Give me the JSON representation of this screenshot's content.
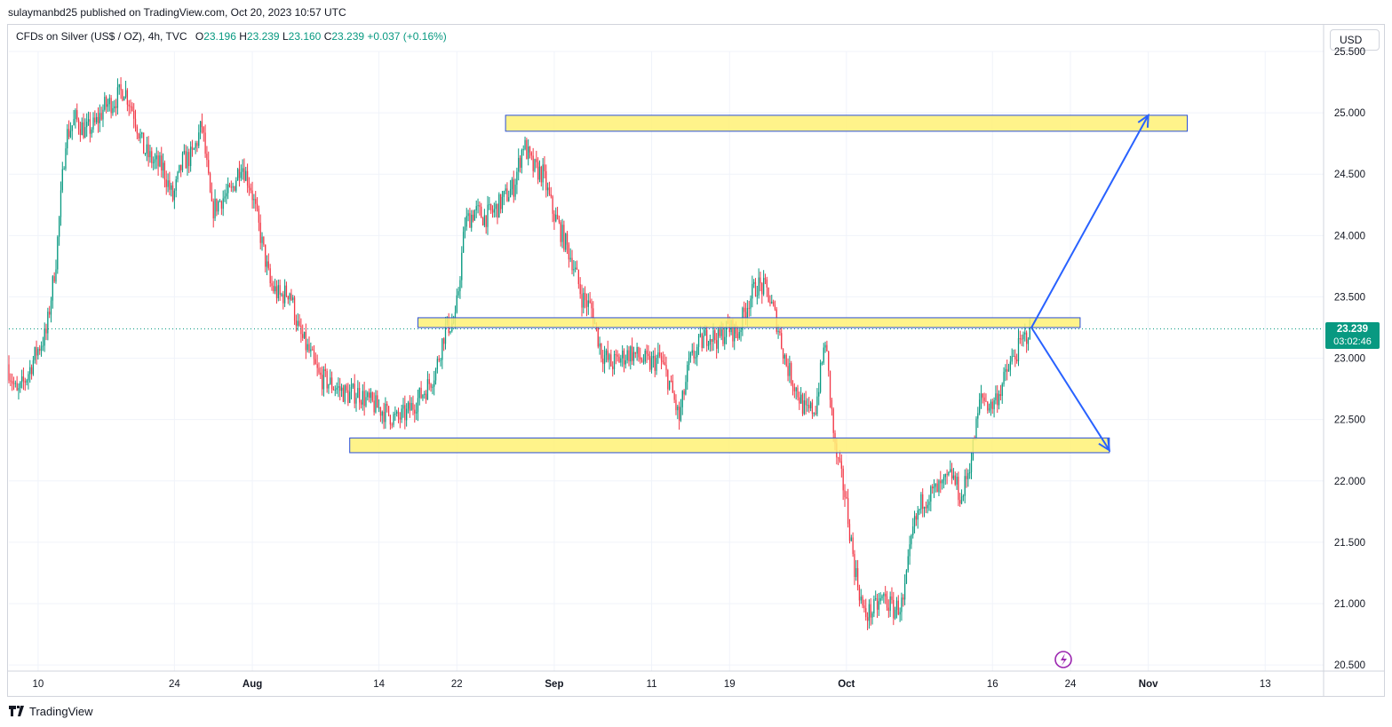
{
  "header": {
    "published_by": "sulaymanbd25 published on TradingView.com, Oct 20, 2023 10:57 UTC"
  },
  "legend": {
    "title": "CFDs on Silver (US$ / OZ), 4h, TVC",
    "open_label": "O",
    "open": "23.196",
    "high_label": "H",
    "high": "23.239",
    "low_label": "L",
    "low": "23.160",
    "close_label": "C",
    "close": "23.239",
    "change": "+0.037 (+0.16%)"
  },
  "currency_button": "USD",
  "price_tag": {
    "price": "23.239",
    "countdown": "03:02:46"
  },
  "footer": {
    "brand": "TradingView"
  },
  "colors": {
    "up": "#089981",
    "down": "#f23645",
    "zone_fill": "#fff176",
    "zone_border": "#2a4fd6",
    "arrow": "#2962ff",
    "grid": "#f0f3fa",
    "flash": "#9c27b0"
  },
  "chart_data": {
    "type": "candlestick",
    "timeframe": "4h",
    "y_axis": {
      "ylim": [
        20.45,
        25.5
      ],
      "ticks": [
        20.5,
        21.0,
        21.5,
        22.0,
        22.5,
        23.0,
        23.5,
        24.0,
        24.5,
        25.0,
        25.5
      ],
      "tick_labels": [
        "20.500",
        "21.000",
        "21.500",
        "22.000",
        "22.500",
        "23.000",
        "23.500",
        "24.000",
        "24.500",
        "25.000",
        "25.500"
      ]
    },
    "x_axis": {
      "tick_labels": [
        "10",
        "24",
        "Aug",
        "14",
        "22",
        "Sep",
        "11",
        "19",
        "Oct",
        "16",
        "24",
        "Nov",
        "13"
      ],
      "tick_dates": [
        "2023-07-10",
        "2023-07-24",
        "2023-08-01",
        "2023-08-14",
        "2023-08-22",
        "2023-09-01",
        "2023-09-11",
        "2023-09-19",
        "2023-10-01",
        "2023-10-16",
        "2023-10-24",
        "2023-11-01",
        "2023-11-13"
      ]
    },
    "closes_by_date": [
      [
        "2023-07-07",
        22.95
      ],
      [
        "2023-07-08",
        22.7
      ],
      [
        "2023-07-09",
        22.85
      ],
      [
        "2023-07-10",
        23.05
      ],
      [
        "2023-07-11",
        23.2
      ],
      [
        "2023-07-12",
        23.8
      ],
      [
        "2023-07-13",
        24.8
      ],
      [
        "2023-07-14",
        24.95
      ],
      [
        "2023-07-15",
        24.85
      ],
      [
        "2023-07-16",
        24.9
      ],
      [
        "2023-07-17",
        25.05
      ],
      [
        "2023-07-18",
        25.1
      ],
      [
        "2023-07-19",
        25.2
      ],
      [
        "2023-07-20",
        25.0
      ],
      [
        "2023-07-21",
        24.7
      ],
      [
        "2023-07-22",
        24.6
      ],
      [
        "2023-07-23",
        24.55
      ],
      [
        "2023-07-24",
        24.3
      ],
      [
        "2023-07-25",
        24.6
      ],
      [
        "2023-07-26",
        24.65
      ],
      [
        "2023-07-27",
        24.9
      ],
      [
        "2023-07-28",
        24.2
      ],
      [
        "2023-07-29",
        24.3
      ],
      [
        "2023-07-30",
        24.35
      ],
      [
        "2023-07-31",
        24.6
      ],
      [
        "2023-08-01",
        24.4
      ],
      [
        "2023-08-02",
        24.0
      ],
      [
        "2023-08-03",
        23.6
      ],
      [
        "2023-08-04",
        23.5
      ],
      [
        "2023-08-05",
        23.55
      ],
      [
        "2023-08-06",
        23.2
      ],
      [
        "2023-08-07",
        23.05
      ],
      [
        "2023-08-08",
        22.85
      ],
      [
        "2023-08-09",
        22.8
      ],
      [
        "2023-08-10",
        22.75
      ],
      [
        "2023-08-11",
        22.7
      ],
      [
        "2023-08-12",
        22.72
      ],
      [
        "2023-08-13",
        22.65
      ],
      [
        "2023-08-14",
        22.6
      ],
      [
        "2023-08-15",
        22.55
      ],
      [
        "2023-08-16",
        22.5
      ],
      [
        "2023-08-17",
        22.55
      ],
      [
        "2023-08-18",
        22.65
      ],
      [
        "2023-08-19",
        22.75
      ],
      [
        "2023-08-20",
        22.9
      ],
      [
        "2023-08-21",
        23.25
      ],
      [
        "2023-08-22",
        23.3
      ],
      [
        "2023-08-23",
        24.1
      ],
      [
        "2023-08-24",
        24.2
      ],
      [
        "2023-08-25",
        24.15
      ],
      [
        "2023-08-26",
        24.2
      ],
      [
        "2023-08-27",
        24.3
      ],
      [
        "2023-08-28",
        24.4
      ],
      [
        "2023-08-29",
        24.75
      ],
      [
        "2023-08-30",
        24.55
      ],
      [
        "2023-08-31",
        24.5
      ],
      [
        "2023-09-01",
        24.2
      ],
      [
        "2023-09-02",
        24.0
      ],
      [
        "2023-09-03",
        23.8
      ],
      [
        "2023-09-04",
        23.5
      ],
      [
        "2023-09-05",
        23.4
      ],
      [
        "2023-09-06",
        23.05
      ],
      [
        "2023-09-07",
        22.95
      ],
      [
        "2023-09-08",
        23.0
      ],
      [
        "2023-09-09",
        23.05
      ],
      [
        "2023-09-10",
        23.0
      ],
      [
        "2023-09-11",
        22.95
      ],
      [
        "2023-09-12",
        23.0
      ],
      [
        "2023-09-13",
        22.8
      ],
      [
        "2023-09-14",
        22.5
      ],
      [
        "2023-09-15",
        22.95
      ],
      [
        "2023-09-16",
        23.1
      ],
      [
        "2023-09-17",
        23.2
      ],
      [
        "2023-09-18",
        23.15
      ],
      [
        "2023-09-19",
        23.25
      ],
      [
        "2023-09-20",
        23.2
      ],
      [
        "2023-09-21",
        23.45
      ],
      [
        "2023-09-22",
        23.6
      ],
      [
        "2023-09-23",
        23.55
      ],
      [
        "2023-09-24",
        23.3
      ],
      [
        "2023-09-25",
        22.95
      ],
      [
        "2023-09-26",
        22.75
      ],
      [
        "2023-09-27",
        22.55
      ],
      [
        "2023-09-28",
        22.6
      ],
      [
        "2023-09-29",
        23.15
      ],
      [
        "2023-09-30",
        22.25
      ],
      [
        "2023-10-01",
        21.9
      ],
      [
        "2023-10-02",
        21.3
      ],
      [
        "2023-10-03",
        20.9
      ],
      [
        "2023-10-04",
        20.95
      ],
      [
        "2023-10-05",
        21.05
      ],
      [
        "2023-10-06",
        20.95
      ],
      [
        "2023-10-07",
        21.0
      ],
      [
        "2023-10-08",
        21.6
      ],
      [
        "2023-10-09",
        21.85
      ],
      [
        "2023-10-10",
        21.9
      ],
      [
        "2023-10-11",
        21.95
      ],
      [
        "2023-10-12",
        22.05
      ],
      [
        "2023-10-13",
        21.85
      ],
      [
        "2023-10-14",
        22.2
      ],
      [
        "2023-10-15",
        22.7
      ],
      [
        "2023-10-16",
        22.6
      ],
      [
        "2023-10-17",
        22.75
      ],
      [
        "2023-10-18",
        22.95
      ],
      [
        "2023-10-19",
        23.1
      ],
      [
        "2023-10-20",
        23.239
      ]
    ],
    "last_price": 23.239,
    "annotations": {
      "zones": [
        {
          "from_date": "2023-08-27",
          "to_date": "2023-11-05",
          "low": 24.85,
          "high": 24.98
        },
        {
          "from_date": "2023-08-18",
          "to_date": "2023-10-25",
          "low": 23.25,
          "high": 23.33
        },
        {
          "from_date": "2023-08-11",
          "to_date": "2023-10-28",
          "low": 22.23,
          "high": 22.35
        }
      ],
      "arrows": [
        {
          "from": [
            "2023-10-20",
            23.25
          ],
          "to": [
            "2023-11-01",
            24.98
          ]
        },
        {
          "from": [
            "2023-10-20",
            23.25
          ],
          "to": [
            "2023-10-28",
            22.25
          ]
        }
      ]
    }
  }
}
